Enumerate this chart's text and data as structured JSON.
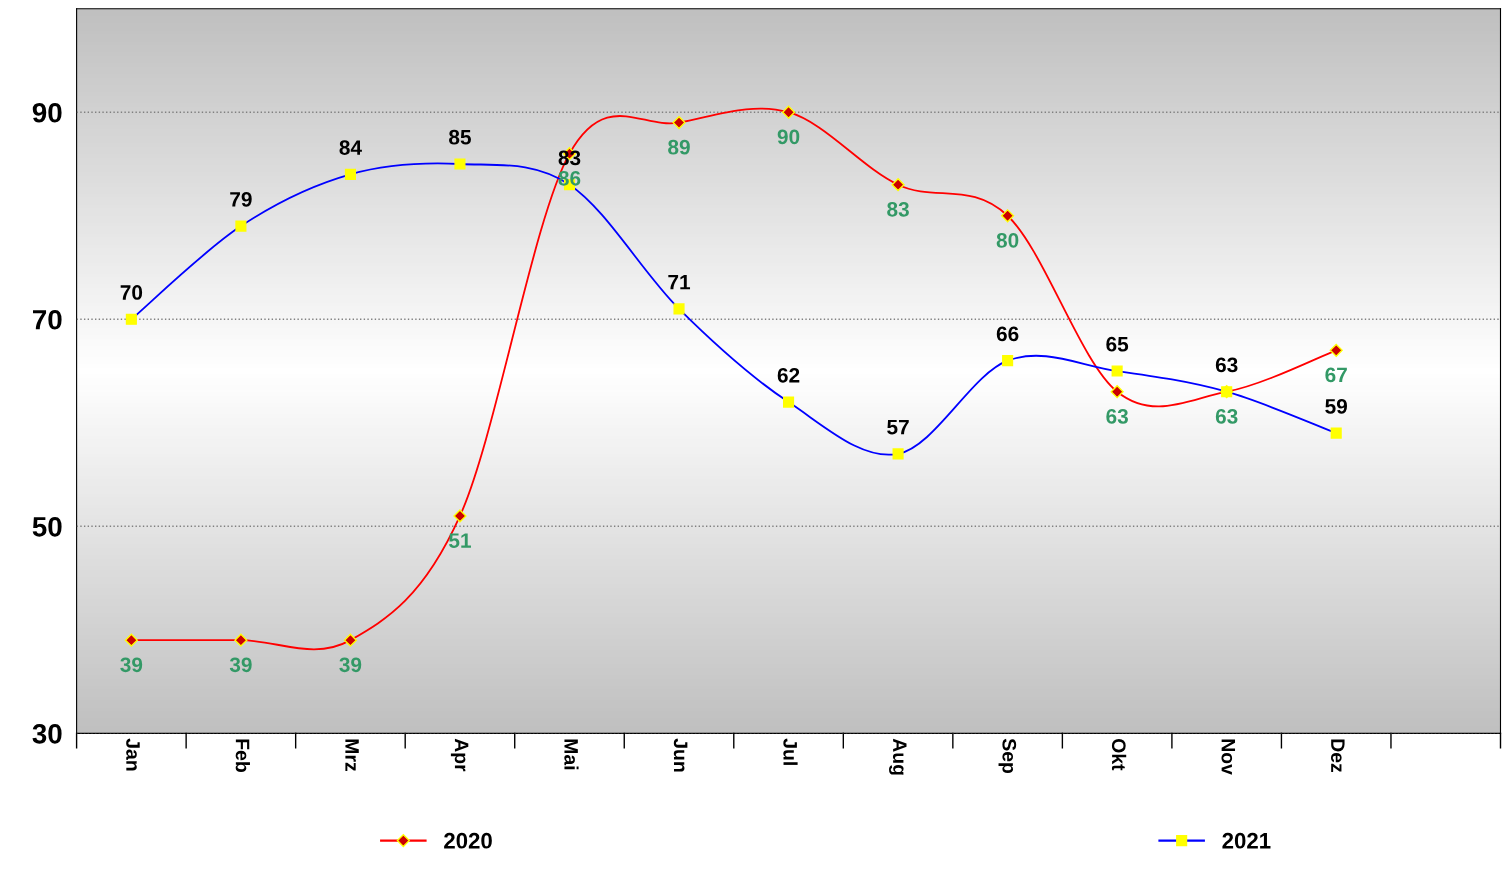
{
  "chart_data": {
    "type": "line",
    "categories": [
      "Jan",
      "Feb",
      "Mrz",
      "Apr",
      "Mai",
      "Jun",
      "Jul",
      "Aug",
      "Sep",
      "Okt",
      "Nov",
      "Dez",
      null
    ],
    "series": [
      {
        "name": "2020",
        "color": "#ff0000",
        "marker": "diamond",
        "values": [
          39,
          39,
          39,
          51,
          86,
          89,
          90,
          83,
          80,
          63,
          63,
          67,
          null
        ]
      },
      {
        "name": "2021",
        "color": "#0000ff",
        "marker": "square",
        "values": [
          70,
          79,
          84,
          85,
          83,
          71,
          62,
          57,
          66,
          65,
          63,
          59,
          null
        ]
      }
    ],
    "ylim": [
      30,
      100
    ],
    "yticks": [
      30,
      50,
      70,
      90
    ],
    "grid": "y",
    "legend": "bottom",
    "data_labels": true,
    "line_style": "solid"
  }
}
